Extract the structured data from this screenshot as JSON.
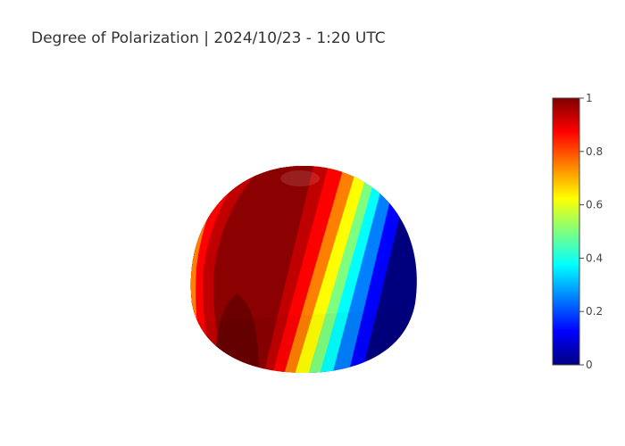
{
  "chart_data": {
    "type": "surface",
    "title": "Degree of Polarization | 2024/10/23 - 1:20 UTC",
    "value_range": [
      0,
      1
    ],
    "colorscale": [
      "#00007f",
      "#0000ff",
      "#007fff",
      "#00ffff",
      "#7fff7f",
      "#ffff00",
      "#ff7f00",
      "#ff0000",
      "#7f0000"
    ],
    "colorbar": {
      "ticks": [
        0,
        0.2,
        0.4,
        0.6,
        0.8,
        1
      ],
      "tick_labels": [
        "0",
        "0.2",
        "0.4",
        "0.6",
        "0.8",
        "1"
      ]
    },
    "legend": "colorbar-right"
  }
}
